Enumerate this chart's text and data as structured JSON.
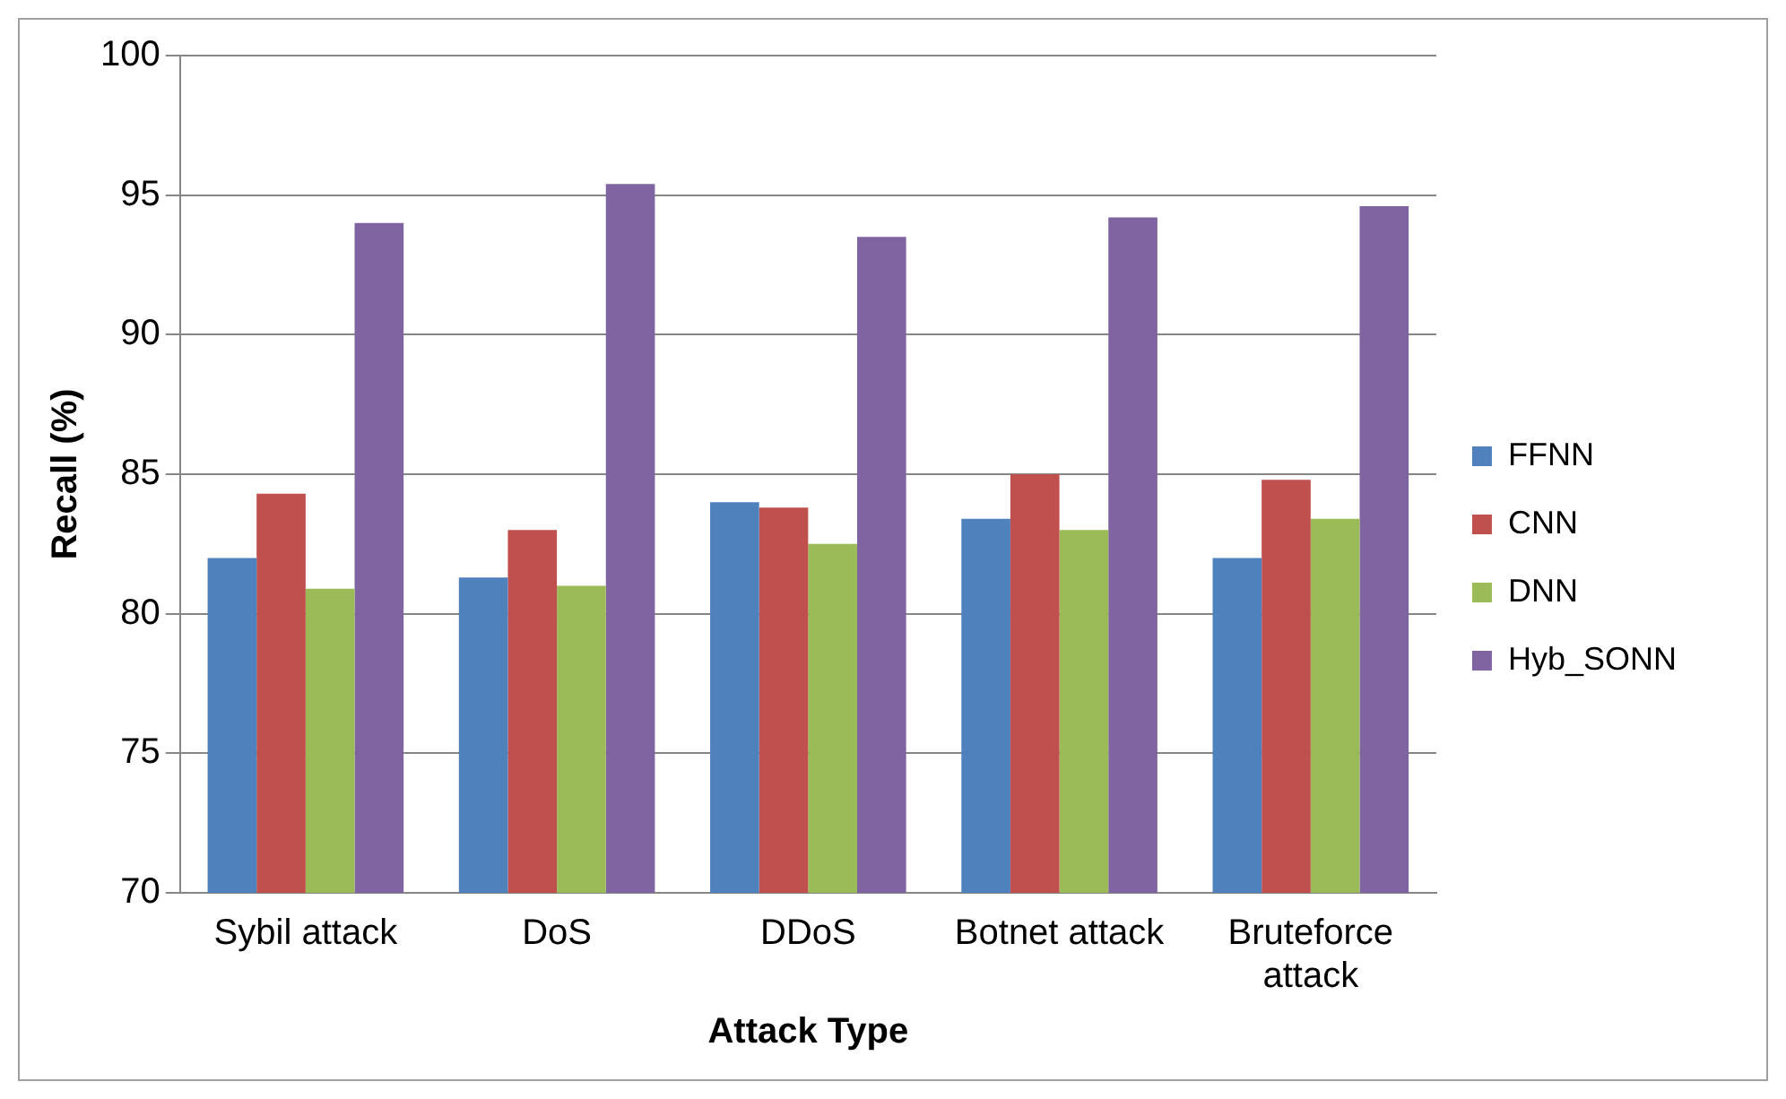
{
  "chart_data": {
    "type": "bar",
    "xlabel": "Attack Type",
    "ylabel": "Recall (%)",
    "categories": [
      "Sybil attack",
      "DoS",
      "DDoS",
      "Botnet attack",
      "Bruteforce attack"
    ],
    "series": [
      {
        "name": "FFNN",
        "color": "#4f81bd",
        "values": [
          82.0,
          81.3,
          84.0,
          83.4,
          82.0
        ]
      },
      {
        "name": "CNN",
        "color": "#c0504d",
        "values": [
          84.3,
          83.0,
          83.8,
          85.0,
          84.8
        ]
      },
      {
        "name": "DNN",
        "color": "#9bbb59",
        "values": [
          80.9,
          81.0,
          82.5,
          83.0,
          83.4
        ]
      },
      {
        "name": "Hyb_SONN",
        "color": "#8064a2",
        "values": [
          94.0,
          95.4,
          93.5,
          94.2,
          94.6
        ]
      }
    ],
    "ylim": [
      70,
      100
    ],
    "yticks": [
      70,
      75,
      80,
      85,
      90,
      95,
      100
    ],
    "grid": "y",
    "legend": "right"
  }
}
